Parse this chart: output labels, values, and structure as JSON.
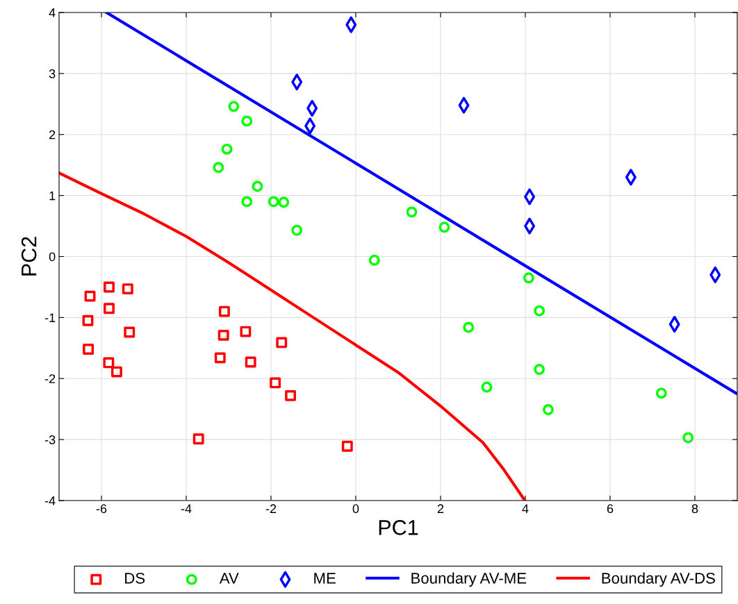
{
  "chart_data": {
    "type": "scatter",
    "xlabel": "PC1",
    "ylabel": "PC2",
    "xlim": [
      -7,
      9
    ],
    "ylim": [
      -4,
      4
    ],
    "xticks": [
      -6,
      -4,
      -2,
      0,
      2,
      4,
      6,
      8
    ],
    "yticks": [
      -4,
      -3,
      -2,
      -1,
      0,
      1,
      2,
      3,
      4
    ],
    "grid": true,
    "legend": "bottom",
    "series": [
      {
        "name": "DS",
        "marker": "square",
        "color": "#ff0000",
        "x": [
          -6.27,
          -5.82,
          -5.38,
          -6.32,
          -5.82,
          -5.34,
          -6.31,
          -5.83,
          -5.64,
          -3.1,
          -3.12,
          -2.6,
          -3.2,
          -2.48,
          -1.75,
          -1.9,
          -1.54,
          -3.71,
          -0.2
        ],
        "values": [
          -0.65,
          -0.5,
          -0.53,
          -1.05,
          -0.85,
          -1.24,
          -1.52,
          -1.74,
          -1.89,
          -0.9,
          -1.29,
          -1.23,
          -1.66,
          -1.73,
          -1.41,
          -2.07,
          -2.28,
          -2.99,
          -3.11
        ]
      },
      {
        "name": "AV",
        "marker": "circle",
        "color": "#00ff00",
        "x": [
          -2.88,
          -2.57,
          -3.04,
          -3.24,
          -2.32,
          -2.57,
          -1.94,
          -1.7,
          -1.39,
          1.32,
          2.09,
          0.44,
          4.08,
          4.33,
          2.66,
          4.33,
          3.09,
          4.54,
          7.21,
          7.84
        ],
        "values": [
          2.46,
          2.22,
          1.76,
          1.46,
          1.15,
          0.9,
          0.9,
          0.89,
          0.43,
          0.73,
          0.48,
          -0.06,
          -0.35,
          -0.89,
          -1.16,
          -1.85,
          -2.14,
          -2.51,
          -2.24,
          -2.97
        ]
      },
      {
        "name": "ME",
        "marker": "diamond",
        "color": "#0000ff",
        "x": [
          -0.11,
          -1.39,
          -1.03,
          -1.08,
          2.55,
          4.1,
          4.1,
          6.49,
          8.48,
          7.52
        ],
        "values": [
          3.8,
          2.86,
          2.43,
          2.14,
          2.48,
          0.98,
          0.5,
          1.3,
          -0.3,
          -1.11
        ]
      },
      {
        "name": "Boundary AV-ME",
        "type": "line",
        "color": "#0000ff",
        "x": [
          -5.88,
          8.97
        ],
        "values": [
          4.0,
          -2.24
        ]
      },
      {
        "name": "Boundary AV-DS",
        "type": "line",
        "color": "#ff0000",
        "x": [
          -7,
          -6,
          -5,
          -4,
          -3,
          -2,
          -1,
          0,
          1,
          2,
          3,
          3.5,
          3.99
        ],
        "values": [
          1.37,
          1.03,
          0.7,
          0.33,
          -0.1,
          -0.55,
          -1.0,
          -1.45,
          -1.9,
          -2.45,
          -3.05,
          -3.5,
          -4.0
        ]
      }
    ]
  }
}
